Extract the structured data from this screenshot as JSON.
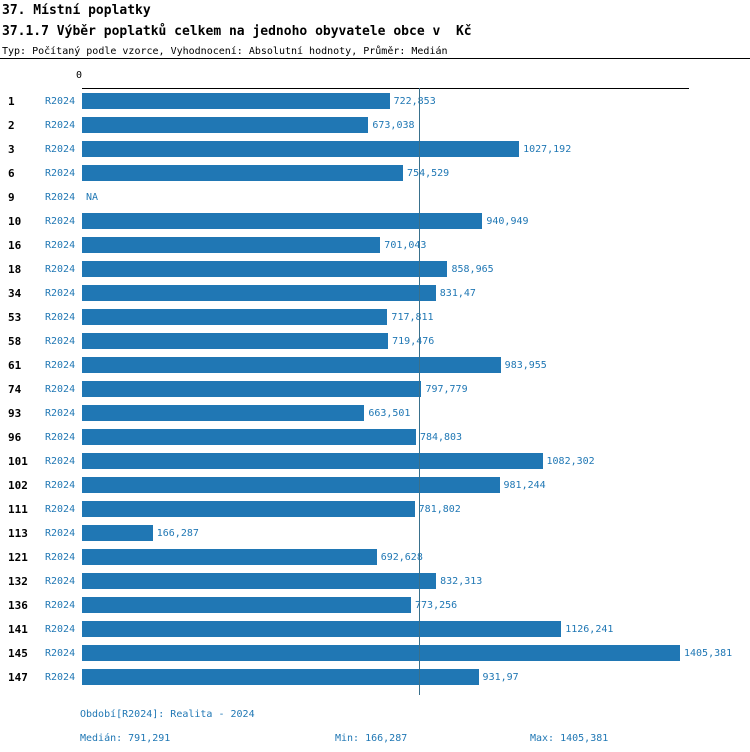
{
  "header": {
    "title": "37. Místní poplatky",
    "subtitle": "37.1.7 Výběr poplatků celkem na jednoho obyvatele obce v  Kč",
    "meta": "Typ: Počítaný podle vzorce, Vyhodnocení: Absolutní hodnoty, Průměr: Medián"
  },
  "chart_data": {
    "type": "bar",
    "orientation": "horizontal",
    "title": "37.1.7 Výběr poplatků celkem na jednoho obyvatele obce v  Kč",
    "xlabel": "",
    "ylabel": "",
    "xlim": [
      0,
      1405.381
    ],
    "axis_zero_label": "0",
    "series_label": "R2024",
    "bar_color": "#2077b4",
    "median_line_color": "#39708c",
    "median_value": 791.291,
    "grid": false,
    "legend_position": "none",
    "categories": [
      "1",
      "2",
      "3",
      "6",
      "9",
      "10",
      "16",
      "18",
      "34",
      "53",
      "58",
      "61",
      "74",
      "93",
      "96",
      "101",
      "102",
      "111",
      "113",
      "121",
      "132",
      "136",
      "141",
      "145",
      "147"
    ],
    "values": [
      722.853,
      673.038,
      1027.192,
      754.529,
      null,
      940.949,
      701.043,
      858.965,
      831.47,
      717.811,
      719.476,
      983.955,
      797.779,
      663.501,
      784.803,
      1082.302,
      981.244,
      781.802,
      166.287,
      692.628,
      832.313,
      773.256,
      1126.241,
      1405.381,
      931.97
    ],
    "value_labels": [
      "722,853",
      "673,038",
      "1027,192",
      "754,529",
      "NA",
      "940,949",
      "701,043",
      "858,965",
      "831,47",
      "717,811",
      "719,476",
      "983,955",
      "797,779",
      "663,501",
      "784,803",
      "1082,302",
      "981,244",
      "781,802",
      "166,287",
      "692,628",
      "832,313",
      "773,256",
      "1126,241",
      "1405,381",
      "931,97"
    ]
  },
  "footer": {
    "period": "Období[R2024]: Realita - 2024",
    "median": "Medián: 791,291",
    "min": "Min: 166,287",
    "max": "Max: 1405,381"
  }
}
